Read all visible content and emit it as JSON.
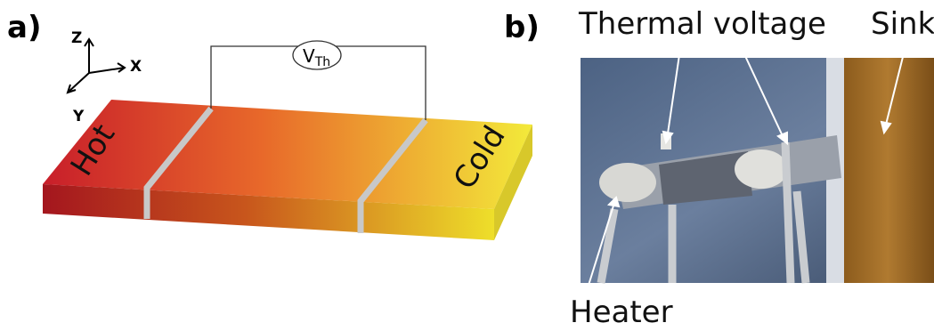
{
  "panels": {
    "a": {
      "label": "a)",
      "axes": {
        "z": "Z",
        "x": "X",
        "y": "Y"
      },
      "voltmeter": {
        "symbol": "V",
        "subscript": "Th"
      },
      "hot": "Hot",
      "cold": "Cold"
    },
    "b": {
      "label": "b)",
      "annotations": {
        "thermal_voltage": "Thermal voltage",
        "sink": "Sink",
        "heater": "Heater"
      }
    }
  }
}
